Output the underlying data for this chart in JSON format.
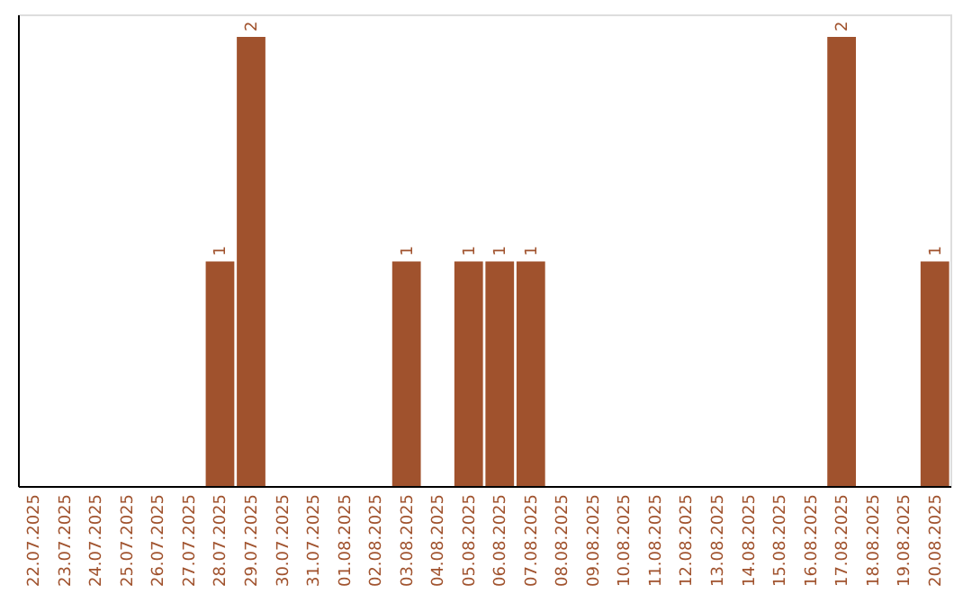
{
  "chart_data": {
    "type": "bar",
    "categories": [
      "22.07.2025",
      "23.07.2025",
      "24.07.2025",
      "25.07.2025",
      "26.07.2025",
      "27.07.2025",
      "28.07.2025",
      "29.07.2025",
      "30.07.2025",
      "31.07.2025",
      "01.08.2025",
      "02.08.2025",
      "03.08.2025",
      "04.08.2025",
      "05.08.2025",
      "06.08.2025",
      "07.08.2025",
      "08.08.2025",
      "09.08.2025",
      "10.08.2025",
      "11.08.2025",
      "12.08.2025",
      "13.08.2025",
      "14.08.2025",
      "15.08.2025",
      "16.08.2025",
      "17.08.2025",
      "18.08.2025",
      "19.08.2025",
      "20.08.2025"
    ],
    "values": [
      0,
      0,
      0,
      0,
      0,
      0,
      1,
      2,
      0,
      0,
      0,
      0,
      1,
      0,
      1,
      1,
      1,
      0,
      0,
      0,
      0,
      0,
      0,
      0,
      0,
      0,
      2,
      0,
      0,
      1
    ],
    "value_labels": [
      null,
      null,
      null,
      null,
      null,
      null,
      "1",
      "2",
      null,
      null,
      null,
      null,
      "1",
      null,
      "1",
      "1",
      "1",
      null,
      null,
      null,
      null,
      null,
      null,
      null,
      null,
      null,
      "2",
      null,
      null,
      "1"
    ],
    "color": "#a0522d",
    "ylim": [
      0,
      2.1
    ],
    "tick_labels": "x"
  }
}
